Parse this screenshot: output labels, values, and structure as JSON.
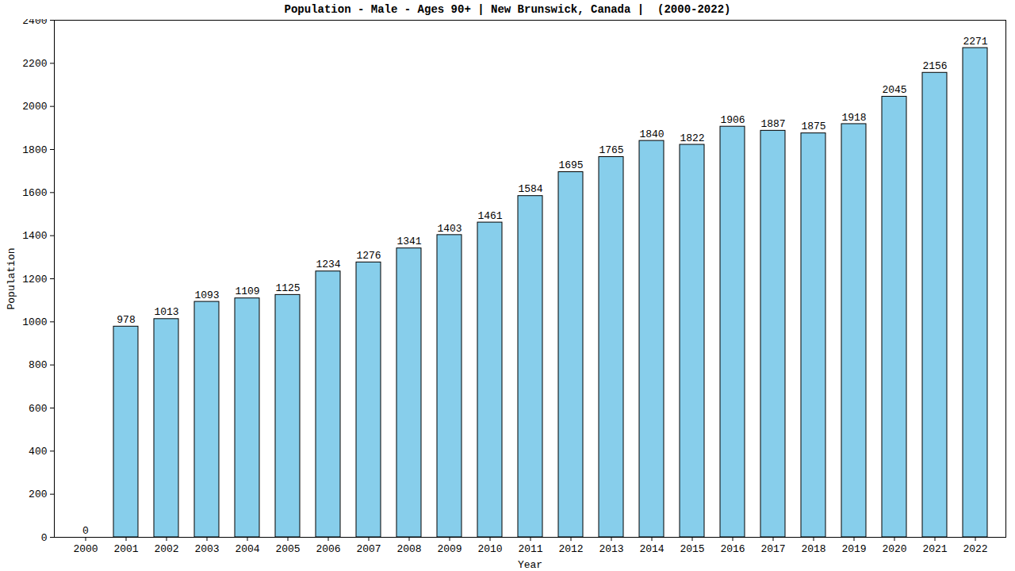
{
  "chart_data": {
    "type": "bar",
    "title": "Population - Male - Ages 90+ | New Brunswick, Canada |  (2000-2022)",
    "x_label": "Year",
    "y_label": "Population",
    "categories": [
      "2000",
      "2001",
      "2002",
      "2003",
      "2004",
      "2005",
      "2006",
      "2007",
      "2008",
      "2009",
      "2010",
      "2011",
      "2012",
      "2013",
      "2014",
      "2015",
      "2016",
      "2017",
      "2018",
      "2019",
      "2020",
      "2021",
      "2022"
    ],
    "values": [
      0,
      978,
      1013,
      1093,
      1109,
      1125,
      1234,
      1276,
      1341,
      1403,
      1461,
      1584,
      1695,
      1765,
      1840,
      1822,
      1906,
      1887,
      1875,
      1918,
      2045,
      2156,
      2271
    ],
    "color": "#87ceeb",
    "ylim": [
      0,
      2400
    ],
    "yticks": [
      0,
      200,
      400,
      600,
      800,
      1000,
      1200,
      1400,
      1600,
      1800,
      2000,
      2200,
      2400
    ],
    "grid": false,
    "data_labels": true
  }
}
